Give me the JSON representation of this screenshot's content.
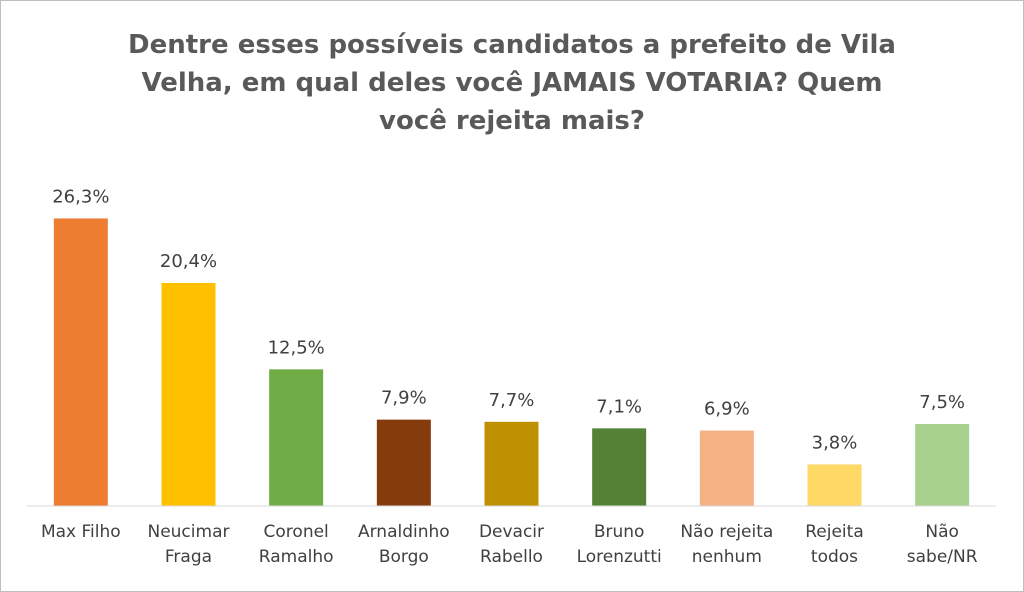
{
  "chart_data": {
    "type": "bar",
    "title": "Dentre esses possíveis candidatos a prefeito de Vila Velha, em qual deles você JAMAIS VOTARIA? Quem você rejeita mais?",
    "categories": [
      "Max Filho",
      "Neucimar Fraga",
      "Coronel Ramalho",
      "Arnaldinho Borgo",
      "Devacir Rabello",
      "Bruno Lorenzutti",
      "Não rejeita nenhum",
      "Rejeita todos",
      "Não sabe/NR"
    ],
    "values": [
      26.3,
      20.4,
      12.5,
      7.9,
      7.7,
      7.1,
      6.9,
      3.8,
      7.5
    ],
    "value_labels": [
      "26,3%",
      "20,4%",
      "12,5%",
      "7,9%",
      "7,7%",
      "7,1%",
      "6,9%",
      "3,8%",
      "7,5%"
    ],
    "colors": [
      "#ED7D31",
      "#FFC000",
      "#70AD47",
      "#843C0C",
      "#BF9000",
      "#538135",
      "#F4B183",
      "#FFD966",
      "#A9D18E"
    ],
    "ylim": [
      0,
      30
    ]
  }
}
